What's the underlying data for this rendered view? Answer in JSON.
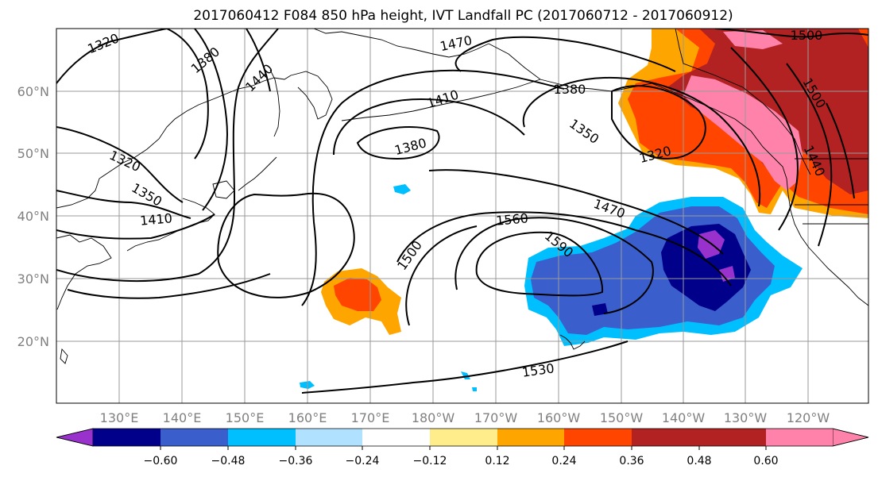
{
  "title": "2017060412 F084 850 hPa height, IVT Landfall PC (2017060712 - 2017060912)",
  "lon_labels": [
    "130°E",
    "140°E",
    "150°E",
    "160°E",
    "170°E",
    "180°W",
    "170°W",
    "160°W",
    "150°W",
    "140°W",
    "130°W",
    "120°W"
  ],
  "lat_labels": [
    "60°N",
    "50°N",
    "40°N",
    "30°N",
    "20°N"
  ],
  "contour_labels": [
    "1320",
    "1380",
    "1440",
    "1470",
    "1500",
    "1380",
    "1410",
    "1350",
    "1320",
    "1380",
    "1320",
    "1350",
    "1410",
    "1500",
    "1560",
    "1590",
    "1470",
    "1500",
    "1440",
    "1530"
  ],
  "colorbar": {
    "tick_labels": [
      "−0.60",
      "−0.48",
      "−0.36",
      "−0.24",
      "−0.12",
      "0.12",
      "0.24",
      "0.36",
      "0.48",
      "0.60"
    ],
    "colors": [
      "#9932cc",
      "#00008b",
      "#3a5fcd",
      "#00bfff",
      "#b0e2ff",
      "#ffffff",
      "#ffec8b",
      "#ffa500",
      "#ff4500",
      "#b22222",
      "#ff82ab"
    ]
  }
}
